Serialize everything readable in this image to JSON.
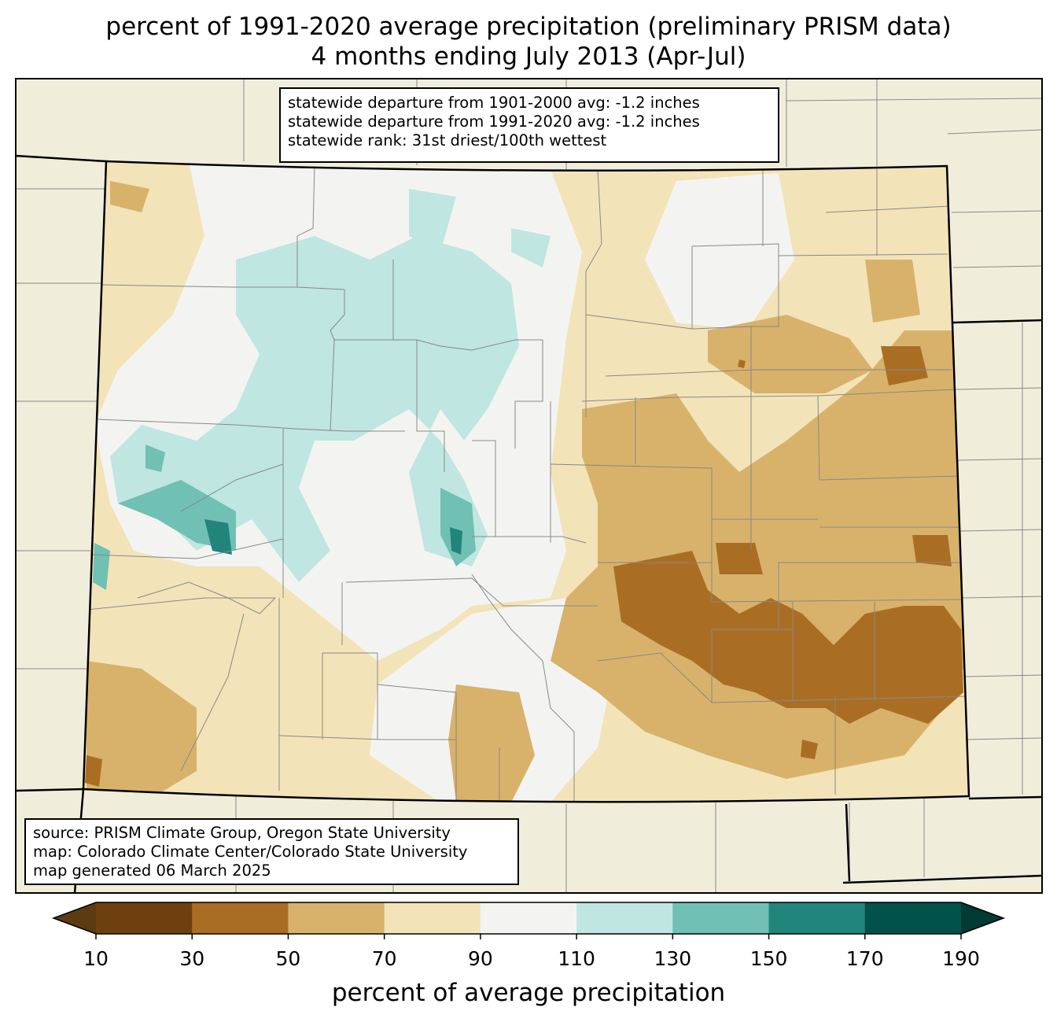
{
  "title": {
    "line1": "percent of 1991-2020 average precipitation (preliminary PRISM data)",
    "line2": "4 months ending July 2013 (Apr-Jul)"
  },
  "stats": {
    "line1": "statewide departure from 1901-2000 avg: -1.2 inches",
    "line2": "statewide departure from 1991-2020 avg: -1.2 inches",
    "line3": "statewide rank: 31st driest/100th wettest"
  },
  "source": {
    "line1": "source: PRISM Climate Group, Oregon State University",
    "line2": "map: Colorado Climate Center/Colorado State University",
    "line3": "map generated 06 March 2025"
  },
  "colorbar": {
    "label": "percent of average precipitation",
    "ticks": [
      "10",
      "30",
      "50",
      "70",
      "90",
      "110",
      "130",
      "150",
      "170",
      "190"
    ],
    "bins": [
      {
        "range": "<10",
        "color": "#5c3b12"
      },
      {
        "range": "10-30",
        "color": "#6e400d"
      },
      {
        "range": "30-50",
        "color": "#a96e24"
      },
      {
        "range": "50-70",
        "color": "#d8b26b"
      },
      {
        "range": "70-90",
        "color": "#f3e3b8"
      },
      {
        "range": "90-110",
        "color": "#f3f4f2"
      },
      {
        "range": "110-130",
        "color": "#bfe6e0"
      },
      {
        "range": "130-150",
        "color": "#70c0b3"
      },
      {
        "range": "150-170",
        "color": "#21857b"
      },
      {
        "range": "170-190",
        "color": "#01524a"
      },
      {
        "range": ">190",
        "color": "#013a33"
      }
    ]
  },
  "colors": {
    "background": "#f0eedb",
    "county_lines": "#888888",
    "state_lines": "#000000"
  }
}
